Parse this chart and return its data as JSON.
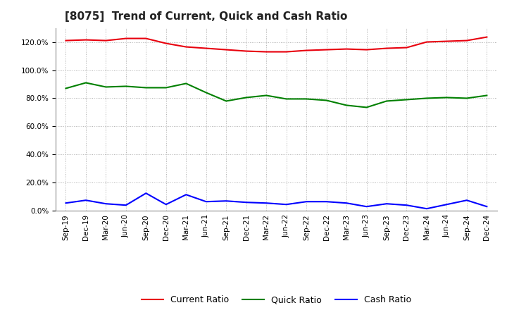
{
  "title": "[8075]  Trend of Current, Quick and Cash Ratio",
  "x_labels": [
    "Sep-19",
    "Dec-19",
    "Mar-20",
    "Jun-20",
    "Sep-20",
    "Dec-20",
    "Mar-21",
    "Jun-21",
    "Sep-21",
    "Dec-21",
    "Mar-22",
    "Jun-22",
    "Sep-22",
    "Dec-22",
    "Mar-23",
    "Jun-23",
    "Sep-23",
    "Dec-23",
    "Mar-24",
    "Jun-24",
    "Sep-24",
    "Dec-24"
  ],
  "current_ratio": [
    121.0,
    121.5,
    121.0,
    122.5,
    122.5,
    119.0,
    116.5,
    115.5,
    114.5,
    113.5,
    113.0,
    113.0,
    114.0,
    114.5,
    115.0,
    114.5,
    115.5,
    116.0,
    120.0,
    120.5,
    121.0,
    123.5
  ],
  "quick_ratio": [
    87.0,
    91.0,
    88.0,
    88.5,
    87.5,
    87.5,
    90.5,
    84.0,
    78.0,
    80.5,
    82.0,
    79.5,
    79.5,
    78.5,
    75.0,
    73.5,
    78.0,
    79.0,
    80.0,
    80.5,
    80.0,
    82.0
  ],
  "cash_ratio": [
    5.5,
    7.5,
    5.0,
    4.0,
    12.5,
    4.5,
    11.5,
    6.5,
    7.0,
    6.0,
    5.5,
    4.5,
    6.5,
    6.5,
    5.5,
    3.0,
    5.0,
    4.0,
    1.5,
    4.5,
    7.5,
    3.0
  ],
  "current_color": "#e8000d",
  "quick_color": "#008000",
  "cash_color": "#0000ff",
  "bg_color": "#ffffff",
  "grid_color": "#b0b0b0",
  "ylim": [
    0,
    130
  ],
  "yticks": [
    0,
    20,
    40,
    60,
    80,
    100,
    120
  ],
  "title_fontsize": 11,
  "legend_fontsize": 9,
  "tick_fontsize": 7.5,
  "line_width": 1.5
}
